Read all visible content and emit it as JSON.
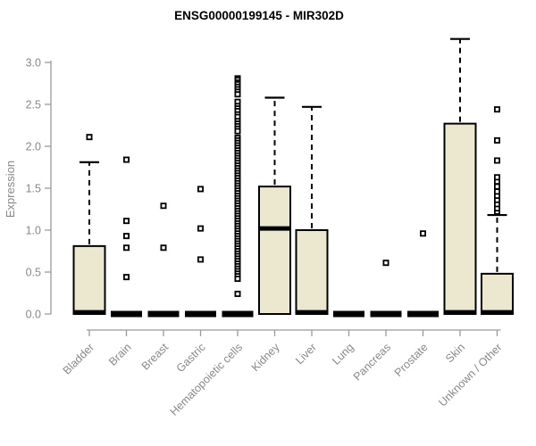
{
  "page": {
    "background": "#ffffff"
  },
  "chart_data": {
    "type": "boxplot",
    "title": "ENSG00000199145 - MIR302D",
    "xlabel": "",
    "ylabel": "Expression",
    "ylim": [
      0.0,
      3.3
    ],
    "yticks": [
      0.0,
      0.5,
      1.0,
      1.5,
      2.0,
      2.5,
      3.0
    ],
    "grid": false,
    "legend": "none",
    "colors": {
      "box_fill": "#ece8d0",
      "box_border": "#000000",
      "median": "#000000",
      "whisker": "#000000",
      "outlier": "#000000",
      "axis": "#9a9a9a",
      "text_gray": "#888888",
      "title": "#000000"
    },
    "categories": [
      "Bladder",
      "Brain",
      "Breast",
      "Gastric",
      "Hematopoietic cells",
      "Kidney",
      "Liver",
      "Lung",
      "Pancreas",
      "Prostate",
      "Skin",
      "Unknown / Other"
    ],
    "series": [
      {
        "name": "Bladder",
        "q1": 0.0,
        "median": 0.02,
        "q3": 0.81,
        "whisker_low": 0.0,
        "whisker_high": 1.81,
        "outliers": [
          2.11
        ]
      },
      {
        "name": "Brain",
        "q1": 0.0,
        "median": 0.02,
        "q3": 0.03,
        "whisker_low": 0.0,
        "whisker_high": 0.03,
        "outliers": [
          1.84,
          1.11,
          0.93,
          0.79,
          0.44
        ]
      },
      {
        "name": "Breast",
        "q1": 0.0,
        "median": 0.02,
        "q3": 0.03,
        "whisker_low": 0.0,
        "whisker_high": 0.03,
        "outliers": [
          1.29,
          0.79
        ]
      },
      {
        "name": "Gastric",
        "q1": 0.0,
        "median": 0.02,
        "q3": 0.03,
        "whisker_low": 0.0,
        "whisker_high": 0.03,
        "outliers": [
          1.49,
          1.02,
          0.65
        ]
      },
      {
        "name": "Hematopoietic cells",
        "q1": 0.0,
        "median": 0.02,
        "q3": 0.03,
        "whisker_low": 0.0,
        "whisker_high": 0.03,
        "outliers": [
          2.81,
          2.79,
          2.76,
          2.74,
          2.71,
          2.68,
          2.65,
          2.62,
          2.53,
          2.48,
          2.45,
          2.42,
          2.38,
          2.35,
          2.3,
          2.27,
          2.24,
          2.21,
          2.18,
          2.1,
          2.07,
          2.04,
          2.01,
          1.98,
          1.95,
          1.92,
          1.89,
          1.86,
          1.83,
          1.8,
          1.77,
          1.74,
          1.71,
          1.68,
          1.65,
          1.62,
          1.59,
          1.56,
          1.53,
          1.5,
          1.47,
          1.44,
          1.41,
          1.38,
          1.35,
          1.32,
          1.29,
          1.26,
          1.23,
          1.2,
          1.17,
          1.14,
          1.11,
          1.08,
          1.05,
          1.02,
          0.99,
          0.96,
          0.93,
          0.9,
          0.87,
          0.84,
          0.81,
          0.78,
          0.75,
          0.72,
          0.69,
          0.66,
          0.63,
          0.6,
          0.57,
          0.54,
          0.51,
          0.48,
          0.45,
          0.42,
          0.24
        ]
      },
      {
        "name": "Kidney",
        "q1": 0.0,
        "median": 1.02,
        "q3": 1.52,
        "whisker_low": 0.0,
        "whisker_high": 2.58,
        "outliers": []
      },
      {
        "name": "Liver",
        "q1": 0.0,
        "median": 0.02,
        "q3": 1.0,
        "whisker_low": 0.0,
        "whisker_high": 2.47,
        "outliers": []
      },
      {
        "name": "Lung",
        "q1": 0.0,
        "median": 0.02,
        "q3": 0.03,
        "whisker_low": 0.0,
        "whisker_high": 0.03,
        "outliers": []
      },
      {
        "name": "Pancreas",
        "q1": 0.0,
        "median": 0.02,
        "q3": 0.03,
        "whisker_low": 0.0,
        "whisker_high": 0.03,
        "outliers": [
          0.61
        ]
      },
      {
        "name": "Prostate",
        "q1": 0.0,
        "median": 0.02,
        "q3": 0.03,
        "whisker_low": 0.0,
        "whisker_high": 0.03,
        "outliers": [
          0.96
        ]
      },
      {
        "name": "Skin",
        "q1": 0.0,
        "median": 0.02,
        "q3": 2.27,
        "whisker_low": 0.0,
        "whisker_high": 3.28,
        "outliers": []
      },
      {
        "name": "Unknown / Other",
        "q1": 0.0,
        "median": 0.02,
        "q3": 0.48,
        "whisker_low": 0.0,
        "whisker_high": 1.18,
        "outliers": [
          1.22,
          1.26,
          1.31,
          1.36,
          1.41,
          1.46,
          1.52,
          1.58,
          1.63,
          1.83,
          2.07,
          2.44
        ]
      }
    ]
  }
}
